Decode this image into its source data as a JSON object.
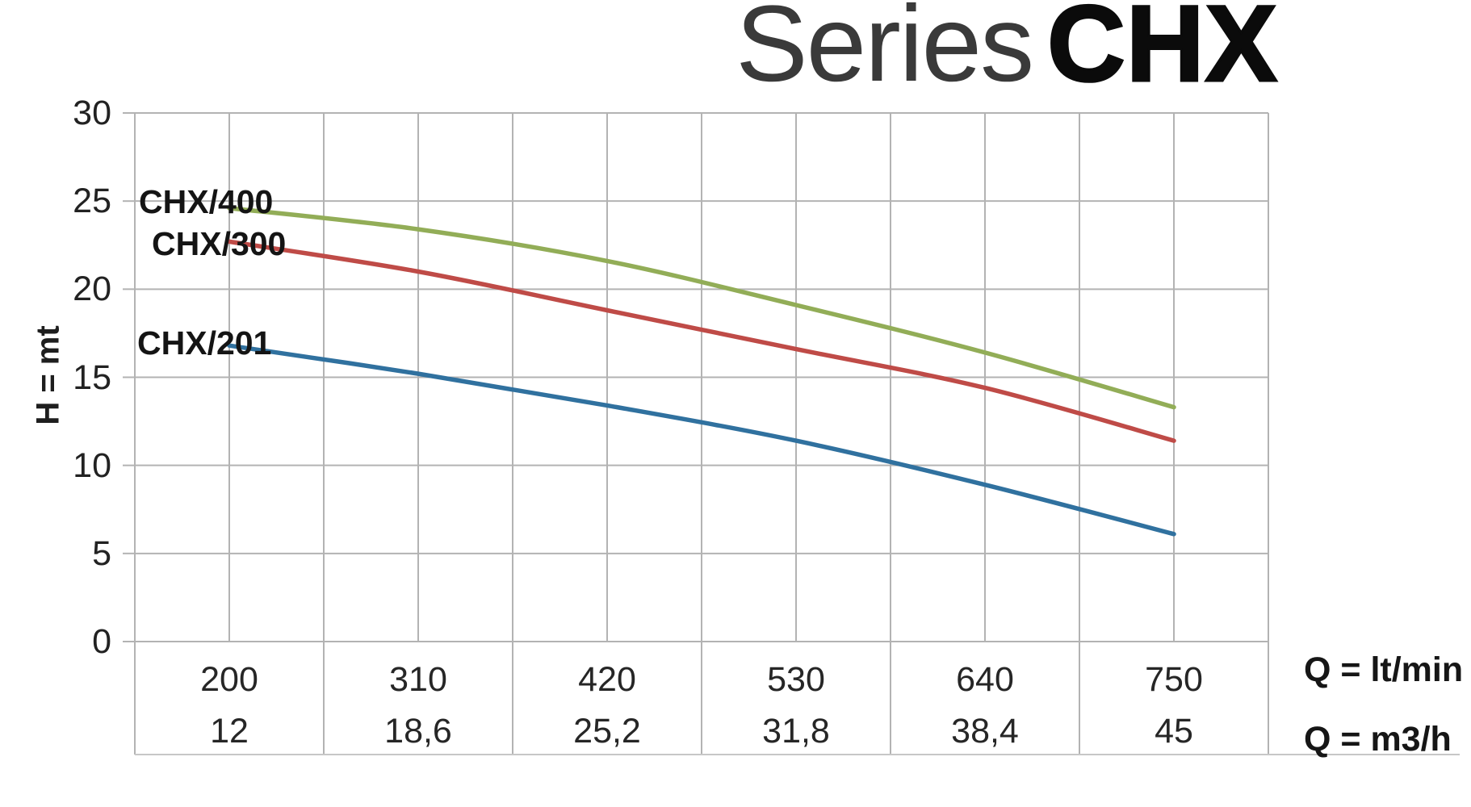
{
  "title": {
    "light": "Series",
    "bold": "CHX"
  },
  "y_axis": {
    "label": "H = mt",
    "ticks": [
      "30",
      "25",
      "20",
      "15",
      "10",
      "5",
      "0"
    ]
  },
  "x_axis": {
    "row1_unit": "Q = lt/min",
    "row2_unit": "Q = m3/h",
    "row1_ticks": [
      "200",
      "310",
      "420",
      "530",
      "640",
      "750"
    ],
    "row2_ticks": [
      "12",
      "18,6",
      "25,2",
      "31,8",
      "38,4",
      "45"
    ]
  },
  "colors": {
    "grid": "#b3b3b3",
    "text": "#222222",
    "chx400": "#92ad57",
    "chx300": "#bf4b47",
    "chx201": "#30719f"
  },
  "chart_data": {
    "type": "line",
    "title": "Series CHX",
    "xlabel": "Q = lt/min",
    "xlabel_secondary": "Q = m3/h",
    "ylabel": "H = mt",
    "x": [
      200,
      310,
      420,
      530,
      640,
      750
    ],
    "x_secondary": [
      12,
      18.6,
      25.2,
      31.8,
      38.4,
      45
    ],
    "ylim": [
      0,
      30
    ],
    "ytick_step": 5,
    "grid": "on",
    "legend_position": "inline-left-of-curves",
    "series": [
      {
        "name": "CHX/400",
        "color": "#92ad57",
        "values": [
          24.6,
          23.4,
          21.6,
          19.1,
          16.4,
          13.3
        ]
      },
      {
        "name": "CHX/300",
        "color": "#bf4b47",
        "values": [
          22.7,
          21.0,
          18.8,
          16.6,
          14.4,
          11.4
        ]
      },
      {
        "name": "CHX/201",
        "color": "#30719f",
        "values": [
          16.8,
          15.2,
          13.4,
          11.4,
          8.9,
          6.1
        ]
      }
    ]
  }
}
